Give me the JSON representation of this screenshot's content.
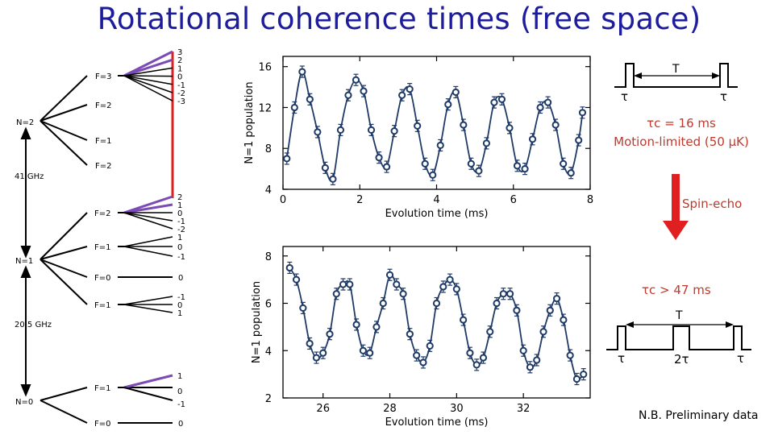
{
  "title": "Rotational coherence times (free space)",
  "colors": {
    "title": "#1c1c9c",
    "data": "#1f3a66",
    "arrow": "#e02020",
    "note": "#c0392b",
    "level": "#000000",
    "purple": "#7b4ab5"
  },
  "level_diagram": {
    "n2_label": "N=2",
    "n1_label": "N=1",
    "n0_label": "N=0",
    "gap_n2_n1": "41 GHz",
    "gap_n1_n0": "20.5 GHz",
    "n2_F": [
      "F=3",
      "F=2",
      "F=1",
      "F=2"
    ],
    "n2_mF_top": [
      "3",
      "2",
      "1",
      "0",
      "-1",
      "-2",
      "-3"
    ],
    "n1_F": [
      "F=2",
      "F=1",
      "F=0",
      "F=1"
    ],
    "n1_mF_F2": [
      "2",
      "1",
      "0",
      "-1",
      "-2"
    ],
    "n1_mF_F1a": [
      "1",
      "0",
      "-1"
    ],
    "n1_mF_F0": "0",
    "n1_mF_F1b": [
      "-1",
      "0",
      "1"
    ],
    "n0_F": [
      "F=1",
      "F=0"
    ],
    "n0_mF_F1": [
      "1",
      "0",
      "-1"
    ],
    "n0_mF_F0": "0"
  },
  "chart_data": [
    {
      "type": "scatter",
      "title": "",
      "xlabel": "Evolution time (ms)",
      "ylabel": "N=1 population",
      "xlim": [
        0,
        8
      ],
      "ylim": [
        4,
        17
      ],
      "xticks": [
        "0",
        "2",
        "4",
        "6",
        "8"
      ],
      "yticks": [
        "4",
        "8",
        "12",
        "16"
      ],
      "series": [
        {
          "x": [
            0.1,
            0.3,
            0.5,
            0.7,
            0.9,
            1.1,
            1.3,
            1.5,
            1.7,
            1.9,
            2.1,
            2.3,
            2.5,
            2.7,
            2.9,
            3.1,
            3.3,
            3.5,
            3.7,
            3.9,
            4.1,
            4.3,
            4.5,
            4.7,
            4.9,
            5.1,
            5.3,
            5.5,
            5.7,
            5.9,
            6.1,
            6.3,
            6.5,
            6.7,
            6.9,
            7.1,
            7.3,
            7.5,
            7.7,
            7.8
          ],
          "y": [
            7,
            12,
            15.5,
            12.8,
            9.6,
            6.1,
            5,
            9.8,
            13.2,
            14.7,
            13.6,
            9.8,
            7.1,
            6.2,
            9.7,
            13.2,
            13.8,
            10.2,
            6.5,
            5.4,
            8.3,
            12.3,
            13.5,
            10.3,
            6.5,
            5.8,
            8.5,
            12.5,
            12.8,
            10,
            6.3,
            6,
            8.9,
            12,
            12.5,
            10.3,
            6.5,
            5.6,
            8.8,
            11.5
          ]
        }
      ]
    },
    {
      "type": "scatter",
      "title": "",
      "xlabel": "Evolution time (ms)",
      "ylabel": "N=1 population",
      "xlim": [
        24.8,
        34
      ],
      "ylim": [
        2,
        8.4
      ],
      "xticks": [
        "26",
        "28",
        "30",
        "32"
      ],
      "yticks": [
        "2",
        "4",
        "6",
        "8"
      ],
      "series": [
        {
          "x": [
            25,
            25.2,
            25.4,
            25.6,
            25.8,
            26,
            26.2,
            26.4,
            26.6,
            26.8,
            27,
            27.2,
            27.4,
            27.6,
            27.8,
            28,
            28.2,
            28.4,
            28.6,
            28.8,
            29,
            29.2,
            29.4,
            29.6,
            29.8,
            30,
            30.2,
            30.4,
            30.6,
            30.8,
            31,
            31.2,
            31.4,
            31.6,
            31.8,
            32,
            32.2,
            32.4,
            32.6,
            32.8,
            33,
            33.2,
            33.4,
            33.6,
            33.8
          ],
          "y": [
            7.5,
            7,
            5.8,
            4.3,
            3.7,
            3.9,
            4.7,
            6.4,
            6.8,
            6.8,
            5.1,
            4,
            3.9,
            5,
            6,
            7.2,
            6.8,
            6.4,
            4.7,
            3.8,
            3.5,
            4.2,
            6,
            6.7,
            7,
            6.6,
            5.3,
            3.9,
            3.4,
            3.7,
            4.8,
            6,
            6.4,
            6.4,
            5.7,
            4,
            3.3,
            3.6,
            4.8,
            5.7,
            6.2,
            5.3,
            3.8,
            2.8,
            3
          ]
        }
      ]
    }
  ],
  "right_panel": {
    "pulse1_T": "T",
    "pulse1_tau_left": "τ",
    "pulse1_tau_right": "τ",
    "tau_c_1": "τc = 16 ms",
    "motion_limited": "Motion-limited (50 μK)",
    "spin_echo": "Spin-echo",
    "tau_c_2": "τc > 47 ms",
    "pulse2_T": "T",
    "pulse2_tau_left": "τ",
    "pulse2_2tau": "2τ",
    "pulse2_tau_right": "τ",
    "note": "N.B. Preliminary data"
  }
}
